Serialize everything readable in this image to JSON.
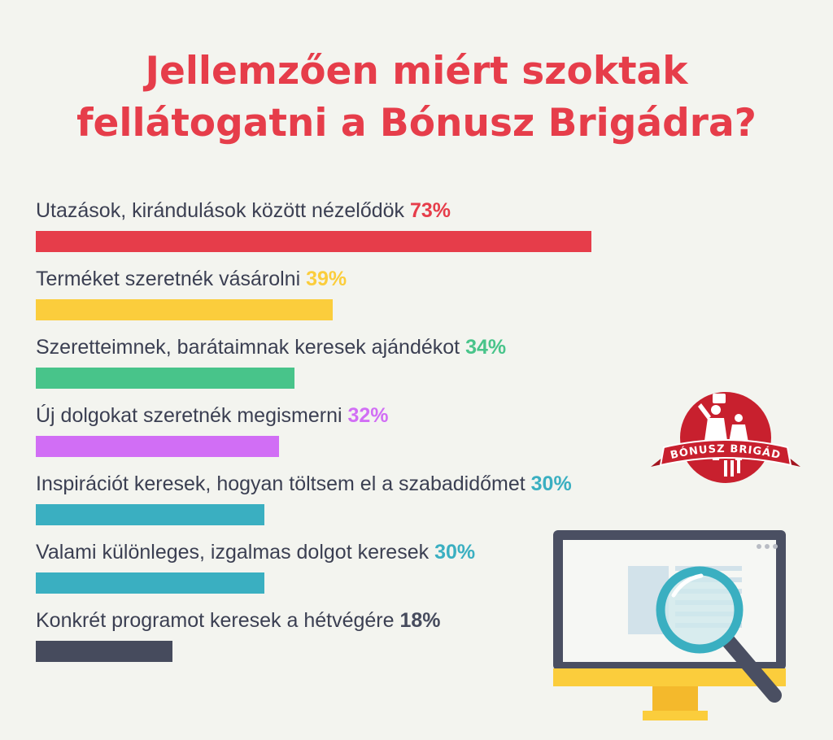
{
  "title_lines": [
    "Jellemzően miért szoktak",
    "fellátogatni a Bónusz Brigádra?"
  ],
  "chart_data": {
    "type": "bar",
    "orientation": "horizontal",
    "title": "Jellemzően miért szoktak fellátogatni a Bónusz Brigádra?",
    "xlim": [
      0,
      100
    ],
    "categories": [
      "Utazások, kirándulások között nézelődök",
      "Terméket szeretnék vásárolni",
      "Szeretteimnek, barátaimnak keresek ajándékot",
      "Új dolgokat szeretnék megismerni",
      "Inspirációt keresek, hogyan töltsem el a szabadidőmet",
      "Valami különleges, izgalmas dolgot keresek",
      "Konkrét programot keresek a hétvégére"
    ],
    "values": [
      73,
      39,
      34,
      32,
      30,
      30,
      18
    ],
    "value_labels": [
      "73%",
      "39%",
      "34%",
      "32%",
      "30%",
      "30%",
      "18%"
    ],
    "colors": [
      "#e63d4a",
      "#fbcd3c",
      "#48c48a",
      "#d16ef5",
      "#3aafc1",
      "#3aafc1",
      "#464b5d"
    ],
    "grid": false,
    "legend": "none"
  },
  "logo": {
    "text": "BÓNUSZ BRIGÁD",
    "color": "#c8202e"
  },
  "illustration": {
    "icon": "monitor-magnifier-icon"
  }
}
